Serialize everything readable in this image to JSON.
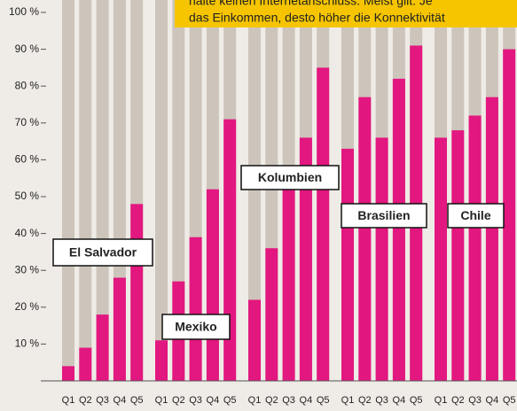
{
  "chart_data": {
    "type": "bar",
    "annotation": [
      "halte keinen Internetanschluss. Meist gilt: Je",
      "das Einkommen, desto höher die Konnektivität"
    ],
    "categories": [
      "Q1",
      "Q2",
      "Q3",
      "Q4",
      "Q5"
    ],
    "color": "#e2177f",
    "background_color": "#cdc5bb",
    "series": [
      {
        "name": "El Salvador",
        "values": [
          4,
          9,
          18,
          28,
          48
        ]
      },
      {
        "name": "Mexiko",
        "values": [
          11,
          27,
          39,
          52,
          71
        ]
      },
      {
        "name": "Kolumbien",
        "values": [
          22,
          36,
          53,
          66,
          85
        ]
      },
      {
        "name": "Brasilien",
        "values": [
          63,
          77,
          66,
          82,
          91
        ]
      },
      {
        "name": "Chile",
        "values": [
          66,
          68,
          72,
          77,
          90
        ]
      }
    ],
    "ylim": [
      0,
      100
    ],
    "yticks": [
      {
        "value": 10,
        "label": "10 %"
      },
      {
        "value": 20,
        "label": "20 %"
      },
      {
        "value": 30,
        "label": "30 %"
      },
      {
        "value": 40,
        "label": "40 %"
      },
      {
        "value": 50,
        "label": "50 %"
      },
      {
        "value": 60,
        "label": "60 %"
      },
      {
        "value": 70,
        "label": "70 %"
      },
      {
        "value": 80,
        "label": "80 %"
      },
      {
        "value": 90,
        "label": "90 %"
      },
      {
        "value": 100,
        "label": "100 %"
      }
    ]
  }
}
